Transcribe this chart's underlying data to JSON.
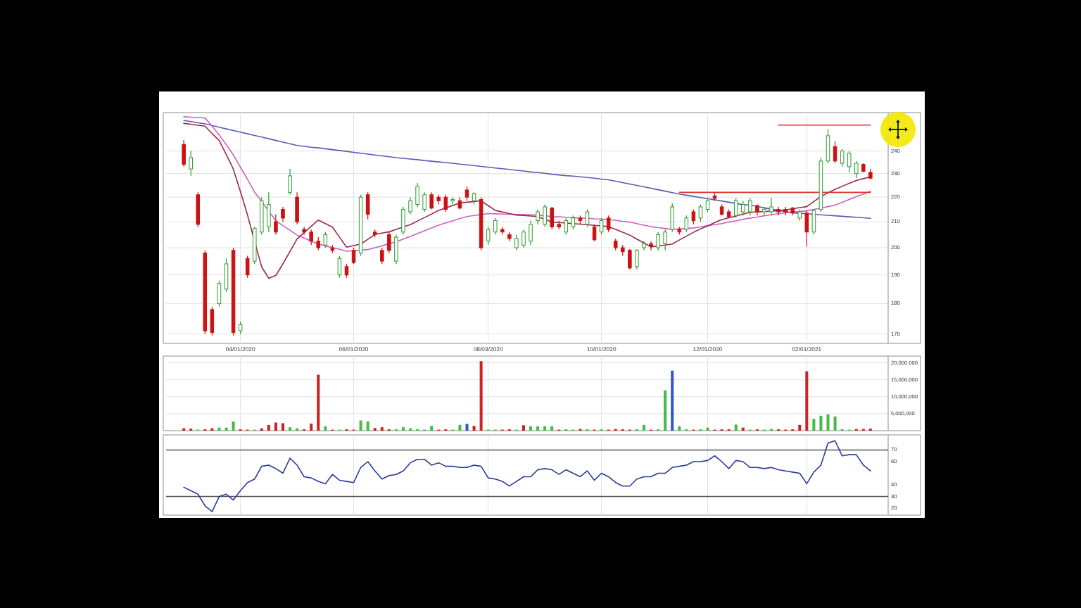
{
  "chart_data": [
    {
      "type": "candlestick",
      "log": true,
      "ylim": [
        167,
        258
      ],
      "yticks": [
        170,
        180,
        190,
        200,
        210,
        220,
        230,
        240
      ],
      "grid": true,
      "categories": [
        null,
        null,
        null,
        null,
        null,
        null,
        null,
        null,
        "04/01/2020",
        null,
        null,
        null,
        null,
        null,
        null,
        null,
        null,
        null,
        null,
        null,
        null,
        null,
        null,
        null,
        "06/01/2020",
        null,
        null,
        null,
        null,
        null,
        null,
        null,
        null,
        null,
        null,
        null,
        null,
        null,
        null,
        null,
        null,
        null,
        null,
        "08/03/2020",
        null,
        null,
        null,
        null,
        null,
        null,
        null,
        null,
        null,
        null,
        null,
        null,
        null,
        null,
        null,
        "10/01/2020",
        null,
        null,
        null,
        null,
        null,
        null,
        null,
        null,
        null,
        null,
        null,
        null,
        null,
        null,
        "12/01/2020",
        null,
        null,
        null,
        null,
        null,
        null,
        null,
        null,
        null,
        null,
        null,
        null,
        null,
        "02/01/2021",
        null,
        null,
        null,
        null,
        null,
        null,
        null,
        null,
        null
      ],
      "ohlc": [
        [
          243,
          245,
          233,
          234
        ],
        [
          232,
          240,
          229,
          237
        ],
        [
          221,
          222,
          208,
          209
        ],
        [
          198,
          199,
          170,
          171
        ],
        [
          178,
          179,
          169.5,
          170.5
        ],
        [
          180,
          188,
          179,
          187
        ],
        [
          185,
          196,
          184,
          194
        ],
        [
          199,
          200,
          169.5,
          170.5
        ],
        [
          171,
          174,
          170,
          173
        ],
        [
          196,
          197,
          189,
          190
        ],
        [
          195,
          208,
          194,
          207.5
        ],
        [
          206,
          220,
          205,
          218.5
        ],
        [
          208,
          222,
          206,
          217
        ],
        [
          210,
          213,
          205,
          206
        ],
        [
          215,
          216,
          210,
          211.5
        ],
        [
          222,
          232,
          221,
          229
        ],
        [
          220,
          222,
          209,
          210
        ],
        [
          207,
          208,
          205,
          206
        ],
        [
          206,
          207,
          201,
          202.5
        ],
        [
          202.5,
          204,
          199,
          200
        ],
        [
          201,
          206,
          200,
          205
        ],
        [
          200,
          201,
          198,
          199
        ],
        [
          190,
          197,
          189,
          196
        ],
        [
          193,
          194,
          189,
          190
        ],
        [
          199,
          200,
          194,
          194.5
        ],
        [
          198,
          221,
          197,
          220
        ],
        [
          221,
          222,
          211,
          213
        ],
        [
          206,
          207,
          204,
          205
        ],
        [
          199,
          200,
          194,
          195
        ],
        [
          205,
          206,
          198,
          199
        ],
        [
          195,
          205,
          194,
          204
        ],
        [
          206,
          216,
          205,
          215
        ],
        [
          214,
          220,
          213,
          218.5
        ],
        [
          217,
          226,
          216,
          224.5
        ],
        [
          215,
          222,
          214,
          221
        ],
        [
          221,
          222,
          215,
          215.5
        ],
        [
          220,
          221,
          217,
          218.5
        ],
        [
          220,
          221,
          214,
          215
        ],
        [
          218.5,
          220,
          217,
          219
        ],
        [
          218.5,
          220,
          215,
          215.5
        ],
        [
          223,
          224.5,
          218.5,
          220
        ],
        [
          218.5,
          222,
          217,
          221.5
        ],
        [
          219,
          220,
          199,
          200
        ],
        [
          202.5,
          208,
          201,
          207
        ],
        [
          206,
          211.5,
          205,
          210.5
        ],
        [
          207,
          208,
          205,
          206
        ],
        [
          205,
          206,
          202.5,
          203.5
        ],
        [
          200,
          205,
          199,
          203.5
        ],
        [
          201,
          207,
          200,
          206
        ],
        [
          202.5,
          210.5,
          201,
          209
        ],
        [
          210.5,
          215,
          209,
          214
        ],
        [
          209,
          217,
          208,
          216
        ],
        [
          215.5,
          216,
          207,
          208
        ],
        [
          209,
          210.5,
          207,
          208
        ],
        [
          206,
          211.5,
          205,
          210.5
        ],
        [
          208,
          212.5,
          207,
          211.5
        ],
        [
          211.5,
          212.5,
          209,
          210.5
        ],
        [
          209,
          215,
          208,
          214
        ],
        [
          208,
          209,
          202.5,
          203
        ],
        [
          206,
          211.5,
          205,
          210.5
        ],
        [
          211.5,
          212.5,
          206,
          207
        ],
        [
          202.5,
          203.5,
          199,
          200
        ],
        [
          200,
          201,
          197,
          198.5
        ],
        [
          199,
          199.5,
          192,
          192.5
        ],
        [
          193,
          199.5,
          192,
          199
        ],
        [
          200,
          202.5,
          199,
          201.5
        ],
        [
          201.5,
          202.5,
          199,
          200.5
        ],
        [
          200,
          206,
          199,
          205
        ],
        [
          201.5,
          207,
          199,
          206
        ],
        [
          207,
          217.5,
          206,
          216
        ],
        [
          207,
          208,
          205,
          206
        ],
        [
          207,
          212.5,
          206,
          211.5
        ],
        [
          214,
          215,
          209,
          210.5
        ],
        [
          211.5,
          217,
          210,
          216
        ],
        [
          215,
          219.5,
          214,
          218.5
        ],
        [
          220.5,
          222,
          218.5,
          219.5
        ],
        [
          216,
          217,
          212.5,
          213
        ],
        [
          214,
          215,
          211.5,
          212
        ],
        [
          212.5,
          219.5,
          211.5,
          218.5
        ],
        [
          214,
          218.5,
          212.5,
          217
        ],
        [
          214,
          219.5,
          212.5,
          218.5
        ],
        [
          216.5,
          217,
          212.5,
          214
        ],
        [
          214,
          216,
          212.5,
          215
        ],
        [
          214,
          219.5,
          212.5,
          216
        ],
        [
          215,
          216,
          212.5,
          214
        ],
        [
          215,
          216,
          212.5,
          214
        ],
        [
          215.5,
          216,
          212.5,
          213.5
        ],
        [
          211.5,
          215,
          210.5,
          214
        ],
        [
          213.5,
          214.5,
          200.5,
          206
        ],
        [
          206,
          215,
          205,
          214.5
        ],
        [
          215,
          237,
          214,
          235.5
        ],
        [
          235.5,
          250,
          234.5,
          247
        ],
        [
          242,
          244.5,
          234.5,
          235.5
        ],
        [
          234.5,
          241,
          233,
          240
        ],
        [
          233,
          240,
          230.5,
          239
        ],
        [
          230,
          235.5,
          228,
          234.5
        ],
        [
          234,
          234.5,
          230.5,
          231
        ],
        [
          230.5,
          232,
          227.5,
          228
        ]
      ],
      "colors": [
        "#cc1111",
        "#2e9e2e",
        "#cc1111",
        "#cc1111",
        "#cc1111",
        "#2e9e2e",
        "#2e9e2e",
        "#cc1111",
        "#2e9e2e",
        "#cc1111",
        "#2e9e2e",
        "#2e9e2e",
        "#2e9e2e",
        "#cc1111",
        "#cc1111",
        "#2e9e2e",
        "#cc1111",
        "#cc1111",
        "#cc1111",
        "#cc1111",
        "#2e9e2e",
        "#cc1111",
        "#2e9e2e",
        "#cc1111",
        "#cc1111",
        "#2e9e2e",
        "#cc1111",
        "#cc1111",
        "#cc1111",
        "#cc1111",
        "#2e9e2e",
        "#2e9e2e",
        "#2e9e2e",
        "#2e9e2e",
        "#2e9e2e",
        "#cc1111",
        "#cc1111",
        "#cc1111",
        "#2e9e2e",
        "#cc1111",
        "#cc1111",
        "#2e9e2e",
        "#cc1111",
        "#2e9e2e",
        "#2e9e2e",
        "#cc1111",
        "#cc1111",
        "#2e9e2e",
        "#2e9e2e",
        "#2e9e2e",
        "#2e9e2e",
        "#2e9e2e",
        "#cc1111",
        "#cc1111",
        "#2e9e2e",
        "#2e9e2e",
        "#cc1111",
        "#2e9e2e",
        "#cc1111",
        "#2e9e2e",
        "#cc1111",
        "#cc1111",
        "#cc1111",
        "#cc1111",
        "#2e9e2e",
        "#2e9e2e",
        "#cc1111",
        "#2e9e2e",
        "#2e9e2e",
        "#2e9e2e",
        "#cc1111",
        "#2e9e2e",
        "#cc1111",
        "#2e9e2e",
        "#2e9e2e",
        "#cc1111",
        "#cc1111",
        "#cc1111",
        "#2e9e2e",
        "#2e9e2e",
        "#2e9e2e",
        "#cc1111",
        "#2e9e2e",
        "#2e9e2e",
        "#cc1111",
        "#cc1111",
        "#cc1111",
        "#2e9e2e",
        "#cc1111",
        "#2e9e2e",
        "#2e9e2e",
        "#2e9e2e",
        "#cc1111",
        "#2e9e2e",
        "#2e9e2e",
        "#2e9e2e",
        "#cc1111",
        "#cc1111"
      ],
      "series": [
        {
          "type": "line",
          "color": "#5a5ab8",
          "values": [
            254.2,
            253.7,
            253.1,
            252.6,
            251.8,
            251,
            250.2,
            249.4,
            248.7,
            247.9,
            247.1,
            246.4,
            245.6,
            244.8,
            244,
            243.3,
            242.5,
            242.1,
            241.7,
            241.4,
            241,
            240.6,
            240.2,
            239.8,
            239.4,
            239,
            238.6,
            238.2,
            237.8,
            237.4,
            237,
            236.7,
            236.4,
            236.1,
            235.7,
            235.4,
            235.1,
            234.8,
            234.5,
            234.1,
            233.8,
            233.5,
            233.1,
            232.8,
            232.4,
            232.1,
            231.8,
            231.4,
            231.1,
            230.7,
            230.4,
            230.1,
            229.7,
            229.4,
            229.1,
            228.9,
            228.6,
            228.3,
            228,
            227.6,
            227.3,
            226.7,
            226.1,
            225.5,
            224.9,
            224.3,
            223.7,
            223.1,
            222.5,
            221.9,
            221.3,
            220.8,
            220.3,
            219.8,
            219.4,
            218.9,
            218.4,
            217.9,
            217.4,
            216.9,
            216.7,
            216.2,
            215.6,
            215.1,
            214.6,
            214.1,
            213.6,
            213.4,
            213.2,
            213,
            212.8,
            212.6,
            212.4,
            212.2,
            212,
            211.8,
            211.6,
            211.4
          ]
        },
        {
          "type": "line",
          "color": "#d060c0",
          "values": [
            256,
            255.8,
            255.6,
            255.4,
            251.5,
            247.4,
            242.8,
            238.2,
            232.8,
            227.5,
            222.1,
            218.2,
            214.3,
            210.4,
            208.5,
            206.7,
            204.8,
            203.7,
            202.5,
            201.4,
            200.7,
            200,
            199.4,
            198.7,
            198.9,
            199.1,
            199.3,
            200,
            200.7,
            201.5,
            202.2,
            203.3,
            204.3,
            205.4,
            206.5,
            207.6,
            208.7,
            209.6,
            210.4,
            211.3,
            212.1,
            212.5,
            212.9,
            213.3,
            213.2,
            213.1,
            213,
            212.9,
            212.9,
            212.8,
            212.7,
            212.4,
            212.1,
            212,
            211.8,
            211.7,
            211.5,
            211.4,
            211.2,
            211.1,
            210.9,
            210.6,
            210.2,
            209.9,
            209.3,
            208.7,
            208.1,
            207.7,
            207.4,
            207,
            207.2,
            207.4,
            207.6,
            208,
            208.5,
            208.9,
            209.3,
            209.9,
            210.4,
            211,
            211.5,
            211.9,
            212.4,
            212.8,
            213.3,
            213.6,
            213.9,
            214.1,
            214.4,
            215,
            215.5,
            216.1,
            216.7,
            217.9,
            219,
            220.2,
            221.3,
            222.5
          ]
        },
        {
          "type": "line",
          "color": "#9a2a4a",
          "values": [
            252.8,
            252.4,
            251.9,
            251.5,
            248,
            244.8,
            238.4,
            231.9,
            222.3,
            212.7,
            202.5,
            192.9,
            188.8,
            189.8,
            194,
            198.6,
            203.3,
            205.8,
            208.2,
            210.7,
            209.3,
            207.9,
            204,
            200.2,
            200.8,
            201.4,
            203.2,
            205.1,
            205.6,
            206.1,
            207,
            208,
            208.9,
            210.3,
            211.7,
            213.1,
            214.6,
            215.6,
            216.6,
            217.6,
            217.9,
            218.2,
            218.5,
            216.5,
            214.6,
            213.9,
            213.3,
            212.7,
            212.5,
            212.3,
            212.1,
            211,
            209.9,
            209.7,
            209.5,
            209.3,
            209.1,
            208.9,
            208.6,
            208.4,
            208.1,
            207,
            205.9,
            204.8,
            203.3,
            201.8,
            200.3,
            200.7,
            201,
            201.4,
            202.9,
            204.4,
            205.9,
            207.2,
            208.4,
            209.7,
            210.9,
            211.6,
            212.3,
            213.1,
            213.8,
            214,
            214.1,
            214.3,
            214.4,
            214.8,
            215.2,
            215.7,
            216.1,
            218.2,
            220.3,
            221.8,
            223.3,
            224.5,
            225.8,
            227,
            227.8,
            228.6
          ]
        },
        {
          "type": "line",
          "color": "#e03030",
          "values": [
            null,
            null,
            null,
            null,
            null,
            null,
            null,
            null,
            null,
            null,
            null,
            null,
            null,
            null,
            null,
            null,
            null,
            null,
            null,
            null,
            null,
            null,
            null,
            null,
            null,
            null,
            null,
            null,
            null,
            null,
            null,
            null,
            null,
            null,
            null,
            null,
            null,
            null,
            null,
            null,
            null,
            null,
            null,
            null,
            null,
            null,
            null,
            null,
            null,
            null,
            null,
            null,
            null,
            null,
            null,
            null,
            null,
            null,
            null,
            null,
            null,
            null,
            null,
            null,
            null,
            null,
            null,
            null,
            null,
            null,
            222,
            222,
            222,
            222,
            222,
            222,
            222,
            222,
            222,
            222,
            222,
            222,
            222,
            222,
            222,
            222,
            222,
            222,
            222,
            222,
            222,
            222,
            222,
            222,
            222,
            222,
            222,
            222
          ]
        },
        {
          "type": "line",
          "color": "#e03030",
          "values": [
            null,
            null,
            null,
            null,
            null,
            null,
            null,
            null,
            null,
            null,
            null,
            null,
            null,
            null,
            null,
            null,
            null,
            null,
            null,
            null,
            null,
            null,
            null,
            null,
            null,
            null,
            null,
            null,
            null,
            null,
            null,
            null,
            null,
            null,
            null,
            null,
            null,
            null,
            null,
            null,
            null,
            null,
            null,
            null,
            null,
            null,
            null,
            null,
            null,
            null,
            null,
            null,
            null,
            null,
            null,
            null,
            null,
            null,
            null,
            null,
            null,
            null,
            null,
            null,
            null,
            null,
            null,
            null,
            null,
            null,
            null,
            null,
            null,
            null,
            null,
            null,
            null,
            null,
            null,
            null,
            null,
            null,
            null,
            null,
            252,
            252,
            252,
            252,
            252,
            252,
            252,
            252,
            252,
            252,
            252,
            252,
            252,
            252
          ]
        }
      ]
    },
    {
      "type": "bar",
      "tick_labels": "y",
      "ylim": [
        0,
        22000000
      ],
      "yticks": [
        {
          "value": 5000000,
          "label": "5,000,000"
        },
        {
          "value": 10000000,
          "label": "10,000,000"
        },
        {
          "value": 15000000,
          "label": "15,000,000"
        },
        {
          "value": 20000000,
          "label": "20,000,000"
        }
      ],
      "grid": true,
      "categories": [
        null,
        null,
        null,
        null,
        null,
        null,
        null,
        null,
        null,
        null,
        null,
        null,
        null,
        null,
        null,
        null,
        null,
        null,
        null,
        null,
        null,
        null,
        null,
        null,
        null,
        null,
        null,
        null,
        null,
        null,
        null,
        null,
        null,
        null,
        null,
        null,
        null,
        null,
        null,
        null,
        null,
        null,
        null,
        null,
        null,
        null,
        null,
        null,
        null,
        null,
        null,
        null,
        null,
        null,
        null,
        null,
        null,
        null,
        null,
        null,
        null,
        null,
        null,
        null,
        null,
        null,
        null,
        null,
        null,
        null,
        null,
        null,
        null,
        null,
        null,
        null,
        null,
        null,
        null,
        null,
        null,
        null,
        null,
        null,
        null,
        null,
        null,
        null,
        null,
        null,
        null,
        null,
        null,
        null,
        null,
        null,
        null,
        null
      ],
      "values": [
        700000,
        600000,
        300000,
        400000,
        700000,
        900000,
        900000,
        2700000,
        400000,
        300000,
        300000,
        700000,
        1700000,
        2400000,
        2200000,
        1000000,
        700000,
        400000,
        2100000,
        16500000,
        1300000,
        300000,
        300000,
        400000,
        300000,
        3000000,
        2700000,
        800000,
        1000000,
        400000,
        400000,
        1000000,
        700000,
        400000,
        300000,
        1400000,
        300000,
        400000,
        300000,
        1700000,
        2000000,
        1400000,
        20500000,
        300000,
        300000,
        300000,
        400000,
        300000,
        1600000,
        1300000,
        1300000,
        1300000,
        1300000,
        300000,
        400000,
        300000,
        500000,
        400000,
        300000,
        400000,
        300000,
        500000,
        400000,
        300000,
        400000,
        1700000,
        300000,
        400000,
        11900000,
        17700000,
        1300000,
        400000,
        300000,
        400000,
        900000,
        300000,
        400000,
        400000,
        1800000,
        900000,
        300000,
        400000,
        300000,
        500000,
        400000,
        300000,
        400000,
        1700000,
        17500000,
        3500000,
        4400000,
        4800000,
        4200000,
        400000,
        300000,
        500000,
        500000,
        600000
      ],
      "colors": [
        "#cc2222",
        "#cc2222",
        "#44bb44",
        "#cc2222",
        "#cc2222",
        "#44bb44",
        "#44bb44",
        "#44bb44",
        "#cc2222",
        "#cc2222",
        "#44bb44",
        "#cc2222",
        "#cc2222",
        "#cc2222",
        "#cc2222",
        "#44bb44",
        "#44bb44",
        "#cc2222",
        "#cc2222",
        "#cc2222",
        "#44bb44",
        "#cc2222",
        "#44bb44",
        "#cc2222",
        "#cc2222",
        "#44bb44",
        "#44bb44",
        "#cc2222",
        "#cc2222",
        "#cc2222",
        "#44bb44",
        "#44bb44",
        "#44bb44",
        "#44bb44",
        "#44bb44",
        "#44bb44",
        "#cc2222",
        "#cc2222",
        "#44bb44",
        "#44bb44",
        "#3355cc",
        "#cc2222",
        "#cc2222",
        "#44bb44",
        "#44bb44",
        "#cc2222",
        "#cc2222",
        "#44bb44",
        "#cc2222",
        "#44bb44",
        "#44bb44",
        "#44bb44",
        "#44bb44",
        "#cc2222",
        "#44bb44",
        "#44bb44",
        "#cc2222",
        "#44bb44",
        "#cc2222",
        "#44bb44",
        "#cc2222",
        "#cc2222",
        "#cc2222",
        "#cc2222",
        "#44bb44",
        "#44bb44",
        "#cc2222",
        "#44bb44",
        "#44bb44",
        "#3355cc",
        "#44bb44",
        "#44bb44",
        "#cc2222",
        "#44bb44",
        "#44bb44",
        "#cc2222",
        "#cc2222",
        "#cc2222",
        "#44bb44",
        "#cc2222",
        "#44bb44",
        "#cc2222",
        "#44bb44",
        "#44bb44",
        "#cc2222",
        "#cc2222",
        "#cc2222",
        "#cc2222",
        "#cc2222",
        "#44bb44",
        "#44bb44",
        "#44bb44",
        "#44bb44",
        "#44bb44",
        "#44bb44",
        "#cc2222",
        "#cc2222",
        "#cc2222"
      ]
    },
    {
      "type": "line",
      "tick_labels": "y",
      "ylim": [
        14,
        83
      ],
      "yticks": [
        20,
        30,
        40,
        60,
        70
      ],
      "grid": "x",
      "ref_lines": [
        {
          "axis": "y",
          "value": 70,
          "color": "#555555"
        },
        {
          "axis": "y",
          "value": 30,
          "color": "#555555"
        }
      ],
      "categories": [
        null,
        null,
        null,
        null,
        null,
        null,
        null,
        null,
        null,
        null,
        null,
        null,
        null,
        null,
        null,
        null,
        null,
        null,
        null,
        null,
        null,
        null,
        null,
        null,
        null,
        null,
        null,
        null,
        null,
        null,
        null,
        null,
        null,
        null,
        null,
        null,
        null,
        null,
        null,
        null,
        null,
        null,
        null,
        null,
        null,
        null,
        null,
        null,
        null,
        null,
        null,
        null,
        null,
        null,
        null,
        null,
        null,
        null,
        null,
        null,
        null,
        null,
        null,
        null,
        null,
        null,
        null,
        null,
        null,
        null,
        null,
        null,
        null,
        null,
        null,
        null,
        null,
        null,
        null,
        null,
        null,
        null,
        null,
        null,
        null,
        null,
        null,
        null,
        null,
        null,
        null,
        null,
        null,
        null,
        null,
        null,
        null,
        null
      ],
      "series": [
        {
          "color": "#2a3a9a",
          "values": [
            38,
            35,
            32,
            22,
            17,
            30,
            32,
            27,
            35,
            42,
            45,
            56,
            57,
            54,
            50,
            63,
            57,
            47,
            46,
            43,
            41,
            49,
            44,
            43,
            42,
            55,
            60,
            52,
            45,
            48,
            49,
            52,
            59,
            62,
            62,
            57,
            59,
            56,
            56,
            55,
            55,
            57,
            56,
            46,
            45,
            43,
            39,
            43,
            47,
            47,
            53,
            54,
            53,
            49,
            53,
            50,
            47,
            52,
            44,
            50,
            47,
            42,
            39,
            39,
            45,
            47,
            47,
            50,
            50,
            55,
            56,
            57,
            60,
            60,
            61,
            65,
            60,
            54,
            61,
            60,
            55,
            55,
            54,
            55,
            53,
            52,
            51,
            50,
            41,
            51,
            57,
            76,
            78,
            65,
            66,
            66,
            57,
            52
          ]
        }
      ]
    }
  ]
}
